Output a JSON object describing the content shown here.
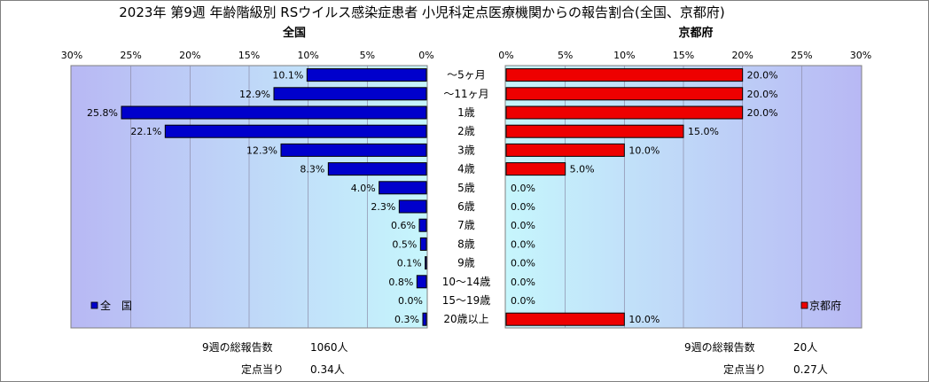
{
  "chart_data": {
    "type": "bar",
    "title": "2023年 第9週 年齢階級別 RSウイルス感染症患者 小児科定点医療機関からの報告割合(全国、京都府)",
    "categories": [
      "～5ヶ月",
      "～11ヶ月",
      "1歳",
      "2歳",
      "3歳",
      "4歳",
      "5歳",
      "6歳",
      "7歳",
      "8歳",
      "9歳",
      "10～14歳",
      "15～19歳",
      "20歳以上"
    ],
    "xlim": [
      0,
      30
    ],
    "xticks": [
      "0%",
      "5%",
      "10%",
      "15%",
      "20%",
      "25%",
      "30%"
    ],
    "tick_values": [
      0,
      5,
      10,
      15,
      20,
      25,
      30
    ],
    "series": [
      {
        "name": "全　国",
        "panel_title": "全国",
        "color": "#0000cc",
        "values": [
          10.1,
          12.9,
          25.8,
          22.1,
          12.3,
          8.3,
          4.0,
          2.3,
          0.6,
          0.5,
          0.1,
          0.8,
          0.0,
          0.3
        ],
        "labels": [
          "10.1%",
          "12.9%",
          "25.8%",
          "22.1%",
          "12.3%",
          "8.3%",
          "4.0%",
          "2.3%",
          "0.6%",
          "0.5%",
          "0.1%",
          "0.8%",
          "0.0%",
          "0.3%"
        ]
      },
      {
        "name": "京都府",
        "panel_title": "京都府",
        "color": "#ee0000",
        "values": [
          20.0,
          20.0,
          20.0,
          15.0,
          10.0,
          5.0,
          0.0,
          0.0,
          0.0,
          0.0,
          0.0,
          0.0,
          0.0,
          10.0
        ],
        "labels": [
          "20.0%",
          "20.0%",
          "20.0%",
          "15.0%",
          "10.0%",
          "5.0%",
          "0.0%",
          "0.0%",
          "0.0%",
          "0.0%",
          "0.0%",
          "0.0%",
          "0.0%",
          "10.0%"
        ]
      }
    ]
  },
  "footer": {
    "left": {
      "total_label": "9週の総報告数",
      "total_value": "1060人",
      "per_label": "定点当り",
      "per_value": "0.34人"
    },
    "right": {
      "total_label": "9週の総報告数",
      "total_value": "20人",
      "per_label": "定点当り",
      "per_value": "0.27人"
    }
  }
}
